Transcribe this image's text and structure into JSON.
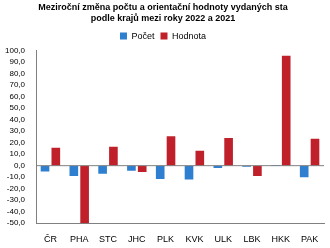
{
  "chart_data": {
    "type": "bar",
    "title": [
      "Meziroční změna počtu a orientační hodnoty vydaných sta",
      "podle krajů mezi roky 2022 a 2021"
    ],
    "categories": [
      "ČR",
      "PHA",
      "STC",
      "JHC",
      "PLK",
      "KVK",
      "ULK",
      "LBK",
      "HKK",
      "PAK"
    ],
    "series": [
      {
        "name": "Počet",
        "color": "#2f7fd0",
        "values": [
          -5,
          -9,
          -7,
          -4.5,
          -11.5,
          -12,
          -2,
          -1,
          0.5,
          -10
        ]
      },
      {
        "name": "Hodnota",
        "color": "#c0202a",
        "values": [
          15.5,
          -50,
          16.5,
          -5.5,
          25.5,
          13,
          24,
          -9,
          95.5,
          23.5
        ]
      }
    ],
    "ylim": [
      -50,
      100
    ],
    "yticks": [
      {
        "value": -50,
        "label": "-50,0"
      },
      {
        "value": -40,
        "label": "-40,0"
      },
      {
        "value": -30,
        "label": "-30,0"
      },
      {
        "value": -20,
        "label": "-20,0"
      },
      {
        "value": -10,
        "label": "-10,0"
      },
      {
        "value": 0,
        "label": "0,0"
      },
      {
        "value": 10,
        "label": "10,0"
      },
      {
        "value": 20,
        "label": "20,0"
      },
      {
        "value": 30,
        "label": "30,0"
      },
      {
        "value": 40,
        "label": "40,0"
      },
      {
        "value": 50,
        "label": "50,0"
      },
      {
        "value": 60,
        "label": "60,0"
      },
      {
        "value": 70,
        "label": "70,0"
      },
      {
        "value": 80,
        "label": "80,0"
      },
      {
        "value": 90,
        "label": "90,0"
      },
      {
        "value": 100,
        "label": "100,0"
      }
    ],
    "grid": false,
    "legend": "top"
  }
}
